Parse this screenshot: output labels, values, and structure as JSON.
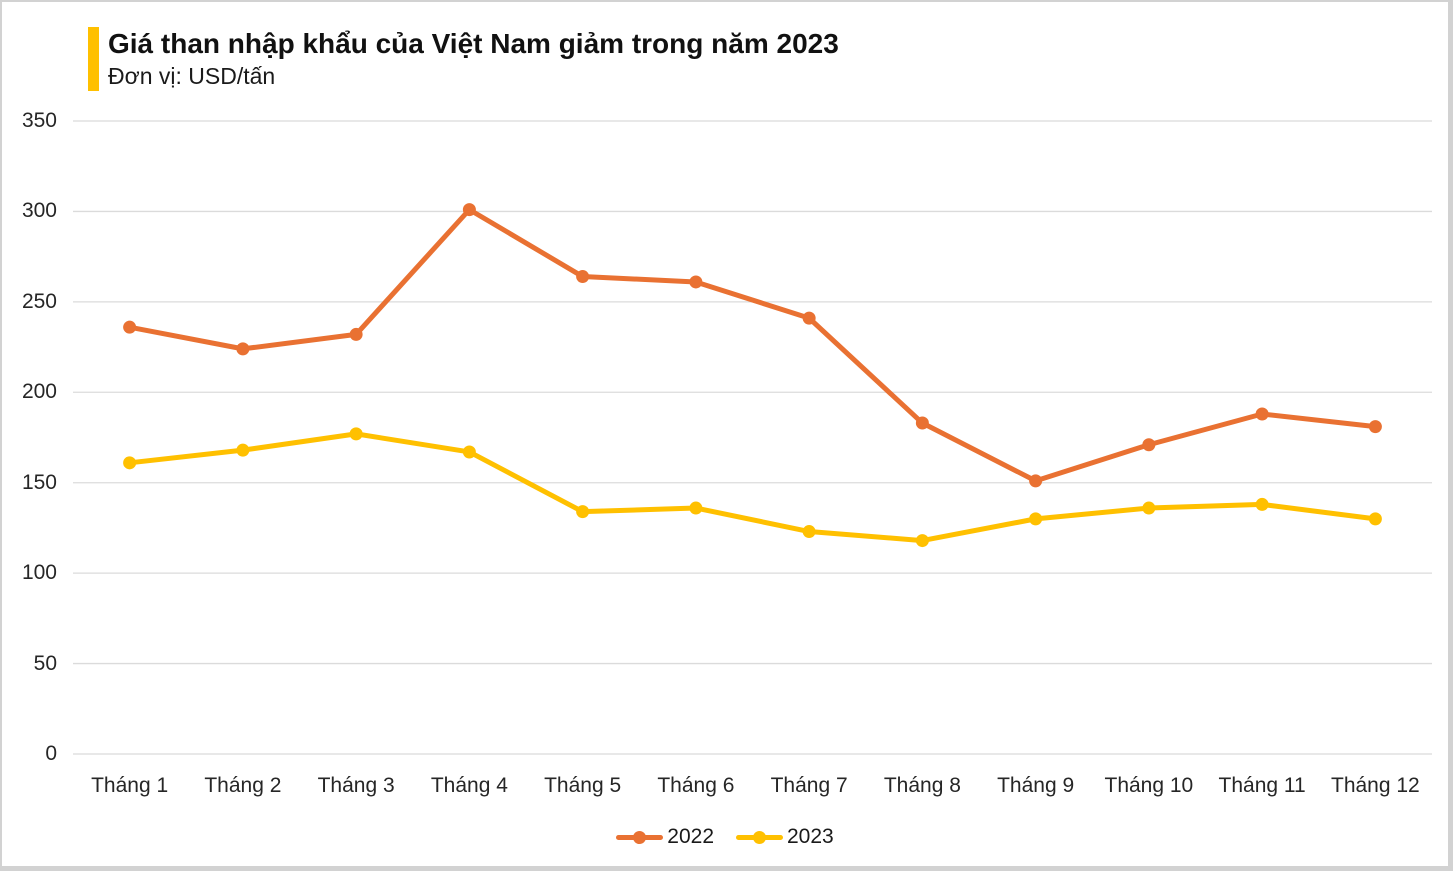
{
  "chart_data": {
    "type": "line",
    "title": "Giá than nhập khẩu của Việt Nam giảm trong năm 2023",
    "subtitle": "Đơn vị: USD/tấn",
    "unit": "USD/tấn",
    "categories": [
      "Tháng 1",
      "Tháng 2",
      "Tháng 3",
      "Tháng 4",
      "Tháng 5",
      "Tháng 6",
      "Tháng 7",
      "Tháng 8",
      "Tháng 9",
      "Tháng 10",
      "Tháng 11",
      "Tháng 12"
    ],
    "series": [
      {
        "name": "2022",
        "color": "#E97132",
        "values": [
          236,
          224,
          232,
          301,
          264,
          261,
          241,
          183,
          151,
          171,
          188,
          181
        ]
      },
      {
        "name": "2023",
        "color": "#FFC000",
        "values": [
          161,
          168,
          177,
          167,
          134,
          136,
          123,
          118,
          130,
          136,
          138,
          130
        ]
      }
    ],
    "ylim": [
      0,
      350
    ],
    "ytick_step": 50,
    "ytick_labels": [
      "0",
      "50",
      "100",
      "150",
      "200",
      "250",
      "300",
      "350"
    ],
    "xlabel": "",
    "ylabel": "",
    "grid": true,
    "legend_position": "bottom"
  },
  "colors": {
    "accent_bar": "#FFC000",
    "gridline": "#DBDBDB",
    "axis_text": "#262626",
    "title_text": "#111111",
    "page_edge": "#D2D2D2",
    "background": "#FFFFFF"
  }
}
